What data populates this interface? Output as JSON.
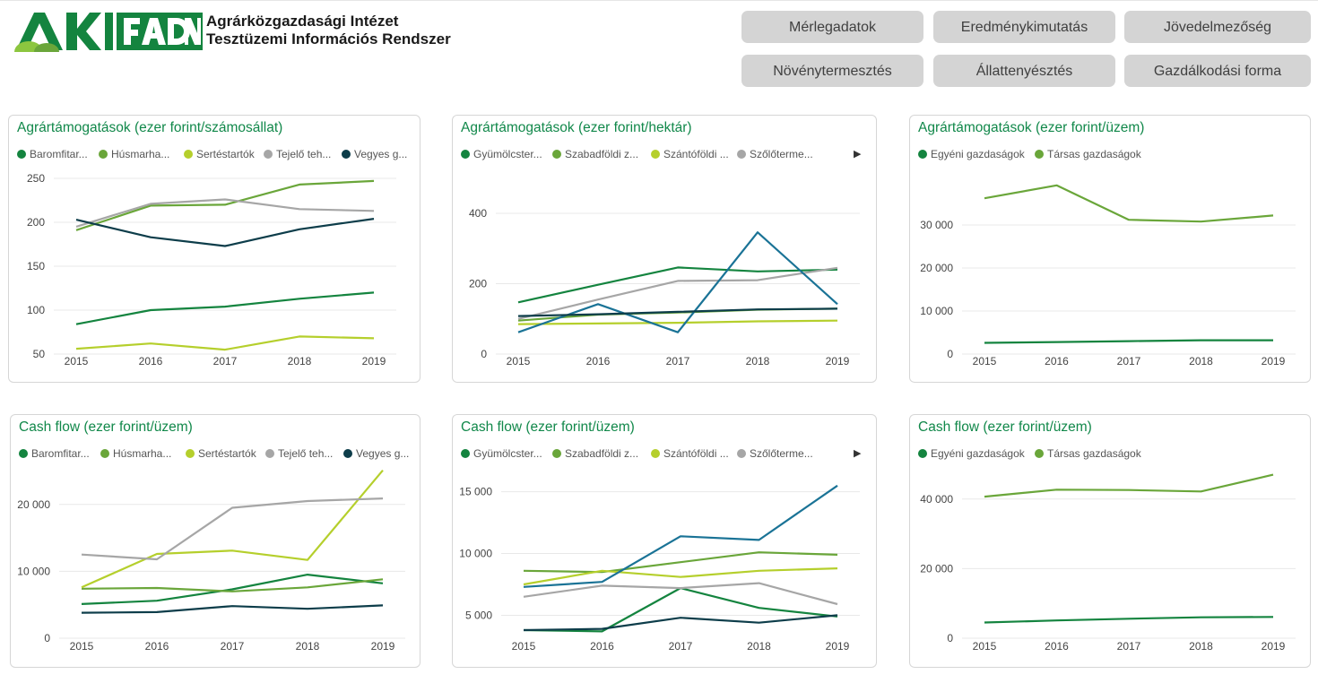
{
  "header": {
    "logo_text": "AKI FADN",
    "org_line1": "Agrárközgazdasági Intézet",
    "org_line2": "Tesztüzemi Információs Rendszer"
  },
  "nav": [
    {
      "label": "Mérlegadatok"
    },
    {
      "label": "Eredménykimutatás"
    },
    {
      "label": "Jövedelmezőség"
    },
    {
      "label": "Növénytermesztés"
    },
    {
      "label": "Állattenyésztés"
    },
    {
      "label": "Gazdálkodási forma"
    }
  ],
  "chart_data": [
    {
      "id": "c1",
      "type": "line",
      "title": "Agrártámogatások (ezer forint/számosállat)",
      "x": [
        "2015",
        "2016",
        "2017",
        "2018",
        "2019"
      ],
      "ylim": [
        50,
        250
      ],
      "yticks": [
        50,
        100,
        150,
        200,
        250
      ],
      "legend_overflow": false,
      "series": [
        {
          "name": "Baromfitar...",
          "color": "#14843f",
          "values": [
            84,
            100,
            104,
            113,
            120
          ]
        },
        {
          "name": "Húsmarha...",
          "color": "#6aa63a",
          "values": [
            191,
            219,
            220,
            243,
            247
          ]
        },
        {
          "name": "Sertéstartók",
          "color": "#b5cf2c",
          "values": [
            56,
            62,
            55,
            70,
            68
          ]
        },
        {
          "name": "Tejelő teh...",
          "color": "#a6a6a6",
          "values": [
            195,
            221,
            226,
            215,
            213
          ]
        },
        {
          "name": "Vegyes g...",
          "color": "#0d3d4a",
          "values": [
            203,
            183,
            173,
            192,
            204
          ]
        }
      ]
    },
    {
      "id": "c2",
      "type": "line",
      "title": "Agrártámogatások (ezer forint/hektár)",
      "x": [
        "2015",
        "2016",
        "2017",
        "2018",
        "2019"
      ],
      "ylim": [
        0,
        400
      ],
      "yticks": [
        0,
        200,
        400
      ],
      "legend_overflow": true,
      "series": [
        {
          "name": "Gyümölcster...",
          "color": "#14843f",
          "values": [
            147,
            197,
            246,
            235,
            240
          ]
        },
        {
          "name": "Szabadföldi z...",
          "color": "#6aa63a",
          "values": [
            95,
            112,
            118,
            126,
            129
          ]
        },
        {
          "name": "Szántóföldi ...",
          "color": "#b5cf2c",
          "values": [
            85,
            87,
            89,
            93,
            95
          ]
        },
        {
          "name": "Szőlőterme...",
          "color": "#a6a6a6",
          "values": [
            100,
            155,
            208,
            210,
            245
          ]
        },
        {
          "name": "",
          "color": "#1a7396",
          "values": [
            62,
            142,
            62,
            346,
            142
          ]
        },
        {
          "name": "",
          "color": "#0d3d4a",
          "values": [
            108,
            113,
            120,
            127,
            129
          ]
        }
      ]
    },
    {
      "id": "c3",
      "type": "line",
      "title": "Agrártámogatások (ezer forint/üzem)",
      "x": [
        "2015",
        "2016",
        "2017",
        "2018",
        "2019"
      ],
      "ylim": [
        0,
        40000
      ],
      "yticks": [
        0,
        10000,
        20000,
        30000
      ],
      "legend_overflow": false,
      "series": [
        {
          "name": "Egyéni gazdaságok",
          "color": "#14843f",
          "values": [
            2600,
            2800,
            3000,
            3200,
            3200
          ]
        },
        {
          "name": "Társas gazdaságok",
          "color": "#6aa63a",
          "values": [
            36200,
            39200,
            31200,
            30800,
            32200
          ]
        }
      ]
    },
    {
      "id": "c4",
      "type": "line",
      "title": "Cash flow (ezer forint/üzem)",
      "x": [
        "2015",
        "2016",
        "2017",
        "2018",
        "2019"
      ],
      "ylim": [
        0,
        26000
      ],
      "yticks": [
        0,
        10000,
        20000
      ],
      "legend_overflow": false,
      "series": [
        {
          "name": "Baromfitar...",
          "color": "#14843f",
          "values": [
            5100,
            5600,
            7300,
            9500,
            8200
          ]
        },
        {
          "name": "Húsmarha...",
          "color": "#6aa63a",
          "values": [
            7400,
            7500,
            7000,
            7600,
            8800
          ]
        },
        {
          "name": "Sertéstartók",
          "color": "#b5cf2c",
          "values": [
            7600,
            12600,
            13100,
            11700,
            25100
          ]
        },
        {
          "name": "Tejelő teh...",
          "color": "#a6a6a6",
          "values": [
            12500,
            11800,
            19500,
            20500,
            20900
          ]
        },
        {
          "name": "Vegyes g...",
          "color": "#0d3d4a",
          "values": [
            3800,
            3900,
            4800,
            4400,
            4900
          ]
        }
      ]
    },
    {
      "id": "c5",
      "type": "line",
      "title": "Cash flow (ezer forint/üzem)",
      "x": [
        "2015",
        "2016",
        "2017",
        "2018",
        "2019"
      ],
      "ylim": [
        3000,
        16500
      ],
      "yticks": [
        5000,
        10000,
        15000
      ],
      "legend_overflow": true,
      "series": [
        {
          "name": "Gyümölcster...",
          "color": "#14843f",
          "values": [
            3800,
            3700,
            7200,
            5600,
            4900
          ]
        },
        {
          "name": "Szabadföldi z...",
          "color": "#6aa63a",
          "values": [
            8600,
            8500,
            9300,
            10100,
            9900
          ]
        },
        {
          "name": "Szántóföldi ...",
          "color": "#b5cf2c",
          "values": [
            7500,
            8600,
            8100,
            8600,
            8800
          ]
        },
        {
          "name": "Szőlőterme...",
          "color": "#a6a6a6",
          "values": [
            6500,
            7400,
            7200,
            7600,
            5900
          ]
        },
        {
          "name": "",
          "color": "#1a7396",
          "values": [
            7300,
            7700,
            11400,
            11100,
            15500
          ]
        },
        {
          "name": "",
          "color": "#0d3d4a",
          "values": [
            3800,
            3900,
            4800,
            4400,
            5000
          ]
        }
      ]
    },
    {
      "id": "c6",
      "type": "line",
      "title": "Cash flow (ezer forint/üzem)",
      "x": [
        "2015",
        "2016",
        "2017",
        "2018",
        "2019"
      ],
      "ylim": [
        0,
        50000
      ],
      "yticks": [
        0,
        20000,
        40000
      ],
      "legend_overflow": false,
      "series": [
        {
          "name": "Egyéni gazdaságok",
          "color": "#14843f",
          "values": [
            4500,
            5100,
            5600,
            6000,
            6100
          ]
        },
        {
          "name": "Társas gazdaságok",
          "color": "#6aa63a",
          "values": [
            40700,
            42700,
            42600,
            42200,
            47000
          ]
        }
      ]
    }
  ]
}
